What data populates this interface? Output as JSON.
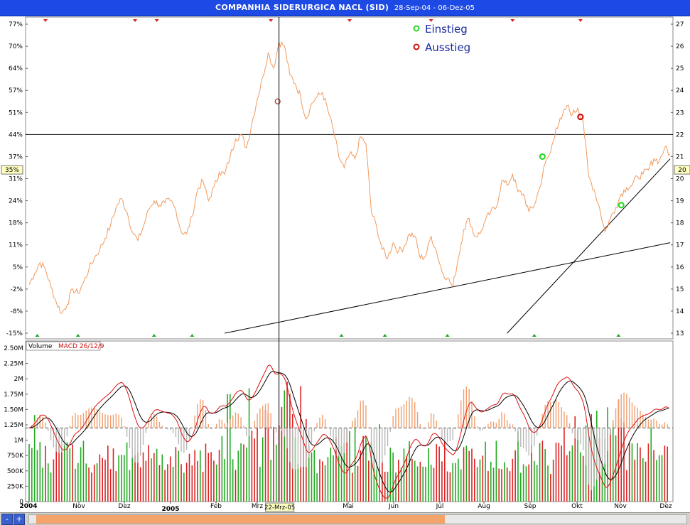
{
  "title": "COMPANHIA SIDERURGICA NACL (SID)",
  "date_range": "28-Sep-04 - 06-Dez-05",
  "legend": {
    "entry": "Einstieg",
    "exit": "Ausstieg"
  },
  "colors": {
    "price": "#f29a5e",
    "entry": "#2ad82a",
    "exit": "#cc1111",
    "volume_up": "#22aa22",
    "volume_down": "#dd2222",
    "macd": "#dd1111",
    "signal": "#000000",
    "hist_pos": "#f0a070",
    "hist_neg": "#b8b8b8",
    "scrollbar": "#f4a36b"
  },
  "price_axis": {
    "left_ticks": [
      "77%",
      "70%",
      "64%",
      "57%",
      "51%",
      "44%",
      "37%",
      "31%",
      "24%",
      "18%",
      "11%",
      "5%",
      "-2%",
      "-8%",
      "-15%"
    ],
    "right_ticks": [
      "27",
      "26",
      "25",
      "24",
      "23",
      "22",
      "21",
      "20",
      "19",
      "18",
      "17",
      "16",
      "15",
      "14",
      "13"
    ],
    "left_marker": "35%",
    "right_marker": "20"
  },
  "time_axis": {
    "labels": [
      "2004",
      "Nov",
      "Dez",
      "2005",
      "Feb",
      "Mrz",
      "Mai",
      "Jun",
      "Jul",
      "Aug",
      "Sep",
      "Okt",
      "Nov",
      "Dez"
    ],
    "cursor_label": "22-Mrz-05"
  },
  "volume_axis": {
    "ticks": [
      "2.50M",
      "2.25M",
      "2M",
      "1.75M",
      "1.50M",
      "1.25M",
      "1M",
      "750K",
      "500K",
      "250K",
      "0"
    ]
  },
  "indicator_label": {
    "volume": "Volume",
    "macd": "MACD 26/12/9"
  },
  "scrollbar": {
    "minus": "-",
    "plus": "+",
    "left_arrow": "◂"
  },
  "chart_data": {
    "type": "line",
    "x_range": [
      "2004-09-28",
      "2005-12-06"
    ],
    "price": {
      "name": "",
      "ylim": [
        13,
        27
      ],
      "values": [
        [
          0,
          15.2
        ],
        [
          4,
          15.7
        ],
        [
          8,
          16.2
        ],
        [
          12,
          15.9
        ],
        [
          16,
          15.1
        ],
        [
          20,
          14.4
        ],
        [
          24,
          13.9
        ],
        [
          28,
          14.3
        ],
        [
          32,
          15.0
        ],
        [
          36,
          14.8
        ],
        [
          40,
          15.3
        ],
        [
          44,
          15.9
        ],
        [
          48,
          16.4
        ],
        [
          52,
          16.8
        ],
        [
          56,
          17.3
        ],
        [
          60,
          17.9
        ],
        [
          64,
          18.7
        ],
        [
          68,
          19.1
        ],
        [
          72,
          18.5
        ],
        [
          76,
          17.6
        ],
        [
          80,
          17.2
        ],
        [
          84,
          17.8
        ],
        [
          88,
          18.6
        ],
        [
          92,
          19.0
        ],
        [
          96,
          18.8
        ],
        [
          100,
          18.9
        ],
        [
          104,
          19.0
        ],
        [
          108,
          18.6
        ],
        [
          112,
          17.6
        ],
        [
          116,
          17.5
        ],
        [
          120,
          18.3
        ],
        [
          124,
          19.5
        ],
        [
          128,
          19.9
        ],
        [
          132,
          19.0
        ],
        [
          136,
          19.6
        ],
        [
          140,
          20.3
        ],
        [
          144,
          20.2
        ],
        [
          148,
          21.0
        ],
        [
          152,
          21.8
        ],
        [
          156,
          22.0
        ],
        [
          160,
          21.4
        ],
        [
          164,
          22.5
        ],
        [
          168,
          23.6
        ],
        [
          172,
          24.6
        ],
        [
          176,
          25.7
        ],
        [
          180,
          25.0
        ],
        [
          184,
          26.2
        ],
        [
          188,
          26.0
        ],
        [
          192,
          24.7
        ],
        [
          196,
          24.3
        ],
        [
          200,
          23.7
        ],
        [
          204,
          22.7
        ],
        [
          208,
          23.4
        ],
        [
          212,
          23.7
        ],
        [
          216,
          23.9
        ],
        [
          220,
          23.1
        ],
        [
          224,
          22.2
        ],
        [
          228,
          21.0
        ],
        [
          232,
          20.5
        ],
        [
          236,
          21.1
        ],
        [
          240,
          20.9
        ],
        [
          244,
          21.9
        ],
        [
          248,
          21.6
        ],
        [
          252,
          18.5
        ],
        [
          256,
          17.8
        ],
        [
          260,
          16.8
        ],
        [
          264,
          16.4
        ],
        [
          268,
          17.1
        ],
        [
          272,
          16.7
        ],
        [
          276,
          16.9
        ],
        [
          280,
          17.5
        ],
        [
          284,
          17.4
        ],
        [
          288,
          16.4
        ],
        [
          292,
          16.5
        ],
        [
          296,
          17.4
        ],
        [
          300,
          16.7
        ],
        [
          304,
          15.8
        ],
        [
          308,
          15.5
        ],
        [
          312,
          15.1
        ],
        [
          316,
          16.4
        ],
        [
          320,
          17.7
        ],
        [
          324,
          18.2
        ],
        [
          328,
          17.4
        ],
        [
          332,
          17.5
        ],
        [
          336,
          18.1
        ],
        [
          340,
          18.5
        ],
        [
          344,
          18.7
        ],
        [
          348,
          19.9
        ],
        [
          352,
          19.7
        ],
        [
          356,
          20.2
        ],
        [
          360,
          19.4
        ],
        [
          364,
          19.3
        ],
        [
          368,
          18.5
        ],
        [
          372,
          18.8
        ],
        [
          376,
          19.6
        ],
        [
          380,
          20.7
        ],
        [
          384,
          21.2
        ],
        [
          388,
          22.3
        ],
        [
          392,
          22.7
        ],
        [
          396,
          23.3
        ],
        [
          400,
          22.9
        ],
        [
          404,
          23.2
        ],
        [
          408,
          22.6
        ],
        [
          412,
          20.1
        ],
        [
          416,
          19.5
        ],
        [
          420,
          18.7
        ],
        [
          424,
          17.6
        ],
        [
          428,
          18.2
        ],
        [
          432,
          18.7
        ],
        [
          436,
          19.3
        ],
        [
          440,
          19.6
        ],
        [
          444,
          19.7
        ],
        [
          448,
          20.1
        ],
        [
          452,
          20.2
        ],
        [
          456,
          20.4
        ],
        [
          460,
          20.9
        ],
        [
          464,
          20.8
        ],
        [
          468,
          21.4
        ],
        [
          472,
          21.1
        ]
      ]
    },
    "entries": [
      [
        378,
        21.0
      ],
      [
        436,
        18.8
      ]
    ],
    "exits": [
      [
        183,
        23.5
      ],
      [
        406,
        22.8
      ]
    ],
    "horizontal_line": 22,
    "trendlines": [
      [
        [
          144,
          13.0
        ],
        [
          472,
          17.1
        ]
      ],
      [
        [
          352,
          13.0
        ],
        [
          472,
          20.9
        ]
      ]
    ],
    "cursor_x": 184,
    "volume_ylim": [
      0,
      2.5
    ],
    "macd_ylim": [
      -1.0,
      1.4
    ],
    "macd_zero_volume_level": 1.2
  }
}
